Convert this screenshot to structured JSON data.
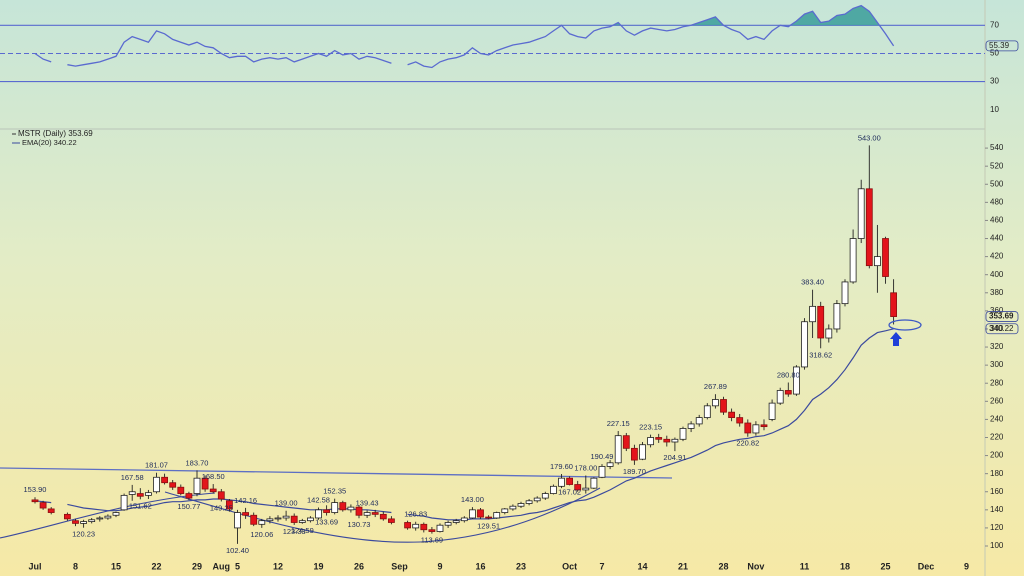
{
  "chart_data": {
    "type": "candlestick",
    "series_label": "MSTR (Daily) 353.69",
    "ema_label": "EMA(20) 340.22",
    "categories": [
      "Jul",
      null,
      null,
      null,
      null,
      "8",
      null,
      null,
      null,
      null,
      "15",
      null,
      null,
      null,
      null,
      "22",
      null,
      null,
      null,
      null,
      "29",
      null,
      null,
      "Aug",
      null,
      "5",
      null,
      null,
      null,
      null,
      "12",
      null,
      null,
      null,
      null,
      "19",
      null,
      null,
      null,
      null,
      "26",
      null,
      null,
      null,
      null,
      "Sep",
      null,
      null,
      null,
      null,
      "9",
      null,
      null,
      null,
      null,
      "16",
      null,
      null,
      null,
      null,
      "23",
      null,
      null,
      null,
      null,
      null,
      "Oct",
      null,
      null,
      null,
      "7",
      null,
      null,
      null,
      null,
      "14",
      null,
      null,
      null,
      null,
      "21",
      null,
      null,
      null,
      null,
      "28",
      null,
      null,
      null,
      "Nov",
      null,
      null,
      null,
      null,
      null,
      "11",
      null,
      null,
      null,
      null,
      "18",
      null,
      null,
      null,
      null,
      "25",
      null,
      null,
      null,
      null,
      "Dec",
      null,
      null,
      null,
      null,
      "9"
    ],
    "ohlc": [
      [
        151,
        153.9,
        147,
        149
      ],
      [
        148,
        150,
        140,
        142
      ],
      [
        141,
        143,
        135,
        137
      ],
      null,
      [
        135,
        137,
        128,
        130
      ],
      [
        128,
        130,
        122,
        125
      ],
      [
        125,
        129,
        120.23,
        127
      ],
      [
        127,
        131,
        125,
        129
      ],
      [
        130,
        133,
        127,
        131
      ],
      [
        131,
        135,
        129,
        133
      ],
      [
        134,
        138,
        132,
        137
      ],
      [
        140,
        158,
        139,
        156
      ],
      [
        157,
        167.58,
        150,
        160
      ],
      [
        158,
        164,
        151.62,
        155
      ],
      [
        156,
        162,
        152,
        159
      ],
      [
        160,
        181.07,
        158,
        176
      ],
      [
        176,
        180,
        168,
        170
      ],
      [
        170,
        173,
        162,
        165
      ],
      [
        165,
        168,
        156,
        158
      ],
      [
        158,
        160,
        150.77,
        153
      ],
      [
        158,
        183.7,
        155,
        175
      ],
      [
        175,
        178,
        160,
        163
      ],
      [
        163,
        168.5,
        158,
        160
      ],
      [
        160,
        163,
        149.25,
        152
      ],
      [
        150,
        152,
        138,
        141
      ],
      [
        120,
        140,
        102.4,
        137
      ],
      [
        137,
        142.16,
        130,
        134
      ],
      [
        134,
        137,
        122,
        124
      ],
      [
        124,
        130,
        120.06,
        128
      ],
      [
        128,
        133,
        125,
        130
      ],
      [
        130,
        134,
        127,
        131
      ],
      [
        131,
        139.0,
        128,
        133
      ],
      [
        133,
        136,
        123.33,
        126
      ],
      [
        126,
        130,
        124.59,
        128
      ],
      [
        128,
        133,
        126,
        131
      ],
      [
        131,
        142.58,
        129,
        140
      ],
      [
        140,
        145,
        133.69,
        137
      ],
      [
        137,
        152.35,
        135,
        148
      ],
      [
        148,
        150,
        138,
        140
      ],
      [
        140,
        146,
        137,
        143
      ],
      [
        143,
        145,
        130.73,
        134
      ],
      [
        134,
        139.43,
        131,
        137
      ],
      [
        137,
        140,
        132,
        135
      ],
      [
        135,
        138,
        128,
        130
      ],
      [
        130,
        133,
        124,
        126
      ],
      null,
      [
        126,
        128,
        118,
        120
      ],
      [
        120,
        126.83,
        117,
        124
      ],
      [
        124,
        126,
        115,
        118
      ],
      [
        118,
        121,
        113.69,
        116
      ],
      [
        116,
        125,
        115,
        123
      ],
      [
        123,
        128,
        120,
        126
      ],
      [
        126,
        130,
        124,
        128
      ],
      [
        128,
        133,
        126,
        131
      ],
      [
        131,
        143.0,
        130,
        140
      ],
      [
        140,
        142,
        130,
        132
      ],
      [
        132,
        134,
        129.51,
        131
      ],
      [
        131,
        138,
        130,
        137
      ],
      [
        137,
        142,
        135,
        141
      ],
      [
        141,
        146,
        139,
        144
      ],
      [
        144,
        149,
        142,
        147
      ],
      [
        147,
        152,
        145,
        150
      ],
      [
        150,
        155,
        148,
        153
      ],
      [
        153,
        160,
        151,
        158
      ],
      [
        158,
        168,
        157,
        166
      ],
      [
        166,
        179.6,
        164,
        175
      ],
      [
        175,
        177,
        167.02,
        168
      ],
      [
        168,
        172,
        160,
        162
      ],
      [
        162,
        178.0,
        158,
        164
      ],
      [
        164,
        176,
        163,
        175
      ],
      [
        176,
        190.49,
        175,
        188
      ],
      [
        188,
        195,
        185,
        192
      ],
      [
        192,
        227.15,
        190,
        222
      ],
      [
        222,
        225,
        205,
        208
      ],
      [
        208,
        212,
        189.7,
        195
      ],
      [
        196,
        215,
        195,
        212
      ],
      [
        212,
        223.15,
        209,
        220
      ],
      [
        220,
        224,
        214,
        218
      ],
      [
        218,
        222,
        210,
        215
      ],
      [
        215,
        220,
        204.91,
        218
      ],
      [
        218,
        232,
        216,
        230
      ],
      [
        230,
        238,
        226,
        235
      ],
      [
        235,
        245,
        232,
        242
      ],
      [
        242,
        258,
        240,
        255
      ],
      [
        255,
        267.89,
        252,
        262
      ],
      [
        262,
        265,
        245,
        248
      ],
      [
        248,
        252,
        238,
        242
      ],
      [
        242,
        246,
        232,
        236
      ],
      [
        236,
        240,
        220.82,
        225
      ],
      [
        225,
        238,
        222,
        234
      ],
      [
        234,
        240,
        228,
        232
      ],
      [
        240,
        262,
        238,
        258
      ],
      [
        258,
        275,
        256,
        272
      ],
      [
        272,
        280.8,
        265,
        268
      ],
      [
        268,
        300,
        266,
        298
      ],
      [
        298,
        352,
        295,
        348
      ],
      [
        348,
        383.4,
        330,
        365
      ],
      [
        365,
        370,
        318.62,
        330
      ],
      [
        330,
        345,
        325,
        340
      ],
      [
        340,
        372,
        336,
        368
      ],
      [
        368,
        395,
        365,
        392
      ],
      [
        392,
        450,
        390,
        440
      ],
      [
        440,
        505,
        435,
        495
      ],
      [
        495,
        543.0,
        407,
        410
      ],
      [
        410,
        455,
        380,
        420
      ],
      [
        440,
        442,
        390,
        398
      ],
      [
        380,
        395,
        345,
        353.69
      ],
      null,
      null,
      null,
      null,
      null,
      null,
      null,
      null,
      null
    ],
    "high_labels": {
      "0": "153.90",
      "12": "167.58",
      "15": "181.07",
      "20": "183.70",
      "22": "168.50",
      "26": "142.16",
      "31": "139.00",
      "35": "142.58",
      "37": "152.35",
      "41": "139.43",
      "47": "126.83",
      "54": "143.00",
      "65": "179.60",
      "68": "178.00",
      "70": "190.49",
      "72": "227.15",
      "76": "223.15",
      "84": "267.89",
      "93": "280.80",
      "96": "383.40",
      "103": "543.00"
    },
    "low_labels": {
      "6": "120.23",
      "13": "151.62",
      "19": "150.77",
      "23": "149.25",
      "25": "102.40",
      "28": "120.06",
      "32": "123.33",
      "33": "124.59",
      "36": "133.69",
      "40": "130.73",
      "49": "113.69",
      "56": "129.51",
      "66": "167.02",
      "74": "189.70",
      "79": "204.91",
      "88": "220.82",
      "97": "318.62"
    },
    "ema": [
      150,
      149,
      148,
      null,
      146,
      144,
      142,
      141,
      140,
      139,
      139,
      140,
      142,
      143,
      144,
      146,
      148,
      149,
      149,
      150,
      151,
      151,
      152,
      152,
      151,
      150,
      149,
      147,
      146,
      145,
      144,
      143,
      142,
      141,
      140,
      140,
      140,
      141,
      141,
      141,
      140,
      140,
      139,
      138,
      137,
      null,
      135,
      134,
      133,
      131,
      130,
      129,
      129,
      129,
      130,
      130,
      130,
      131,
      132,
      133,
      134,
      136,
      137,
      139,
      142,
      145,
      148,
      150,
      151,
      154,
      158,
      162,
      167,
      172,
      175,
      179,
      183,
      186,
      189,
      192,
      195,
      198,
      202,
      206,
      211,
      214,
      216,
      218,
      219,
      221,
      222,
      225,
      229,
      233,
      240,
      250,
      262,
      268,
      275,
      284,
      295,
      308,
      322,
      330,
      336,
      338,
      340.22,
      null,
      null,
      null,
      null,
      null,
      null,
      null,
      null,
      null
    ],
    "rsi": [
      50,
      46,
      44,
      null,
      42,
      41,
      42,
      43,
      44,
      46,
      48,
      58,
      62,
      60,
      58,
      66,
      64,
      60,
      58,
      56,
      58,
      55,
      54,
      50,
      47,
      48,
      48,
      44,
      46,
      47,
      46,
      47,
      44,
      46,
      48,
      50,
      48,
      52,
      49,
      50,
      46,
      48,
      47,
      45,
      43,
      null,
      42,
      44,
      41,
      40,
      44,
      46,
      47,
      49,
      54,
      50,
      49,
      52,
      54,
      56,
      57,
      58,
      60,
      62,
      66,
      70,
      64,
      62,
      61,
      66,
      68,
      69,
      72,
      66,
      63,
      66,
      68,
      67,
      66,
      67,
      69,
      70,
      72,
      74,
      76,
      70,
      67,
      65,
      60,
      62,
      60,
      66,
      70,
      69,
      73,
      78,
      80,
      72,
      73,
      77,
      78,
      82,
      84,
      80,
      72,
      64,
      55.39,
      null,
      null,
      null,
      null,
      null,
      null,
      null,
      null,
      null
    ],
    "ylim": [
      79,
      560
    ],
    "yticks": [
      100,
      120,
      140,
      160,
      180,
      200,
      220,
      240,
      260,
      280,
      300,
      320,
      340,
      360,
      380,
      400,
      420,
      440,
      460,
      480,
      500,
      520,
      540
    ],
    "rsi_ylim": [
      -3,
      88
    ],
    "rsi_yticks": [
      70,
      50,
      30,
      10
    ],
    "rsi_bands": [
      30,
      70
    ],
    "rsi_midline": 50,
    "last_price_tag": {
      "value": 353.69,
      "label": "353.69"
    },
    "ema_tag": {
      "value": 340.22,
      "label": "340.22"
    },
    "rsi_tag": {
      "value": 55.39,
      "label": "55.39"
    },
    "up_color": "#ffffff",
    "down_color": "#e3141b",
    "ema_color": "#3b4a9e",
    "rsi_color": "#5a6ad0",
    "rsi_fill": "#3a9e9a"
  }
}
